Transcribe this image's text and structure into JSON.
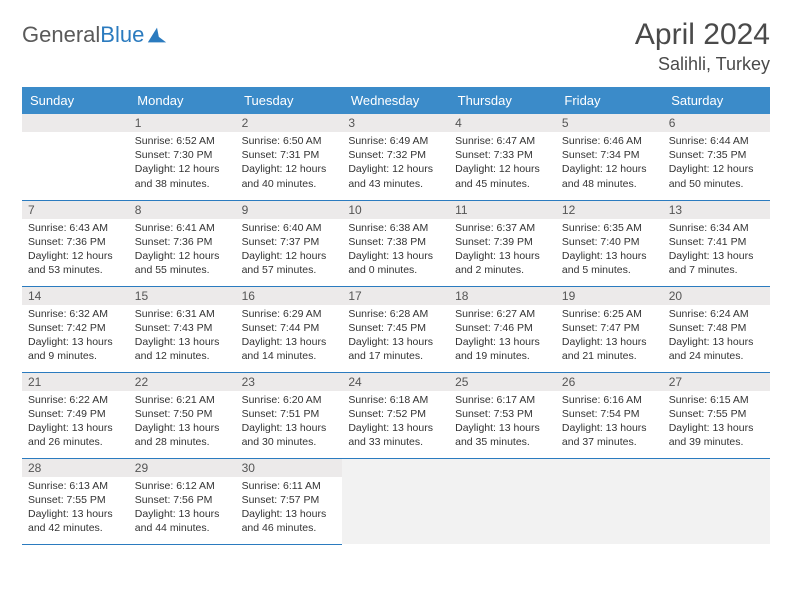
{
  "brand": {
    "name_a": "General",
    "name_b": "Blue"
  },
  "title": "April 2024",
  "location": "Salihli, Turkey",
  "colors": {
    "header_bg": "#3b8bc9",
    "header_text": "#ffffff",
    "rule": "#2b7bbf",
    "daynum_bg": "#eceaea",
    "logo_blue": "#2b7bbf",
    "logo_gray": "#5a5a5a"
  },
  "weekdays": [
    "Sunday",
    "Monday",
    "Tuesday",
    "Wednesday",
    "Thursday",
    "Friday",
    "Saturday"
  ],
  "calendar": {
    "start_weekday": 1,
    "days_in_month": 30,
    "days": [
      {
        "n": 1,
        "sunrise": "6:52 AM",
        "sunset": "7:30 PM",
        "daylight": "12 hours and 38 minutes."
      },
      {
        "n": 2,
        "sunrise": "6:50 AM",
        "sunset": "7:31 PM",
        "daylight": "12 hours and 40 minutes."
      },
      {
        "n": 3,
        "sunrise": "6:49 AM",
        "sunset": "7:32 PM",
        "daylight": "12 hours and 43 minutes."
      },
      {
        "n": 4,
        "sunrise": "6:47 AM",
        "sunset": "7:33 PM",
        "daylight": "12 hours and 45 minutes."
      },
      {
        "n": 5,
        "sunrise": "6:46 AM",
        "sunset": "7:34 PM",
        "daylight": "12 hours and 48 minutes."
      },
      {
        "n": 6,
        "sunrise": "6:44 AM",
        "sunset": "7:35 PM",
        "daylight": "12 hours and 50 minutes."
      },
      {
        "n": 7,
        "sunrise": "6:43 AM",
        "sunset": "7:36 PM",
        "daylight": "12 hours and 53 minutes."
      },
      {
        "n": 8,
        "sunrise": "6:41 AM",
        "sunset": "7:36 PM",
        "daylight": "12 hours and 55 minutes."
      },
      {
        "n": 9,
        "sunrise": "6:40 AM",
        "sunset": "7:37 PM",
        "daylight": "12 hours and 57 minutes."
      },
      {
        "n": 10,
        "sunrise": "6:38 AM",
        "sunset": "7:38 PM",
        "daylight": "13 hours and 0 minutes."
      },
      {
        "n": 11,
        "sunrise": "6:37 AM",
        "sunset": "7:39 PM",
        "daylight": "13 hours and 2 minutes."
      },
      {
        "n": 12,
        "sunrise": "6:35 AM",
        "sunset": "7:40 PM",
        "daylight": "13 hours and 5 minutes."
      },
      {
        "n": 13,
        "sunrise": "6:34 AM",
        "sunset": "7:41 PM",
        "daylight": "13 hours and 7 minutes."
      },
      {
        "n": 14,
        "sunrise": "6:32 AM",
        "sunset": "7:42 PM",
        "daylight": "13 hours and 9 minutes."
      },
      {
        "n": 15,
        "sunrise": "6:31 AM",
        "sunset": "7:43 PM",
        "daylight": "13 hours and 12 minutes."
      },
      {
        "n": 16,
        "sunrise": "6:29 AM",
        "sunset": "7:44 PM",
        "daylight": "13 hours and 14 minutes."
      },
      {
        "n": 17,
        "sunrise": "6:28 AM",
        "sunset": "7:45 PM",
        "daylight": "13 hours and 17 minutes."
      },
      {
        "n": 18,
        "sunrise": "6:27 AM",
        "sunset": "7:46 PM",
        "daylight": "13 hours and 19 minutes."
      },
      {
        "n": 19,
        "sunrise": "6:25 AM",
        "sunset": "7:47 PM",
        "daylight": "13 hours and 21 minutes."
      },
      {
        "n": 20,
        "sunrise": "6:24 AM",
        "sunset": "7:48 PM",
        "daylight": "13 hours and 24 minutes."
      },
      {
        "n": 21,
        "sunrise": "6:22 AM",
        "sunset": "7:49 PM",
        "daylight": "13 hours and 26 minutes."
      },
      {
        "n": 22,
        "sunrise": "6:21 AM",
        "sunset": "7:50 PM",
        "daylight": "13 hours and 28 minutes."
      },
      {
        "n": 23,
        "sunrise": "6:20 AM",
        "sunset": "7:51 PM",
        "daylight": "13 hours and 30 minutes."
      },
      {
        "n": 24,
        "sunrise": "6:18 AM",
        "sunset": "7:52 PM",
        "daylight": "13 hours and 33 minutes."
      },
      {
        "n": 25,
        "sunrise": "6:17 AM",
        "sunset": "7:53 PM",
        "daylight": "13 hours and 35 minutes."
      },
      {
        "n": 26,
        "sunrise": "6:16 AM",
        "sunset": "7:54 PM",
        "daylight": "13 hours and 37 minutes."
      },
      {
        "n": 27,
        "sunrise": "6:15 AM",
        "sunset": "7:55 PM",
        "daylight": "13 hours and 39 minutes."
      },
      {
        "n": 28,
        "sunrise": "6:13 AM",
        "sunset": "7:55 PM",
        "daylight": "13 hours and 42 minutes."
      },
      {
        "n": 29,
        "sunrise": "6:12 AM",
        "sunset": "7:56 PM",
        "daylight": "13 hours and 44 minutes."
      },
      {
        "n": 30,
        "sunrise": "6:11 AM",
        "sunset": "7:57 PM",
        "daylight": "13 hours and 46 minutes."
      }
    ]
  },
  "labels": {
    "sunrise": "Sunrise:",
    "sunset": "Sunset:",
    "daylight": "Daylight:"
  }
}
